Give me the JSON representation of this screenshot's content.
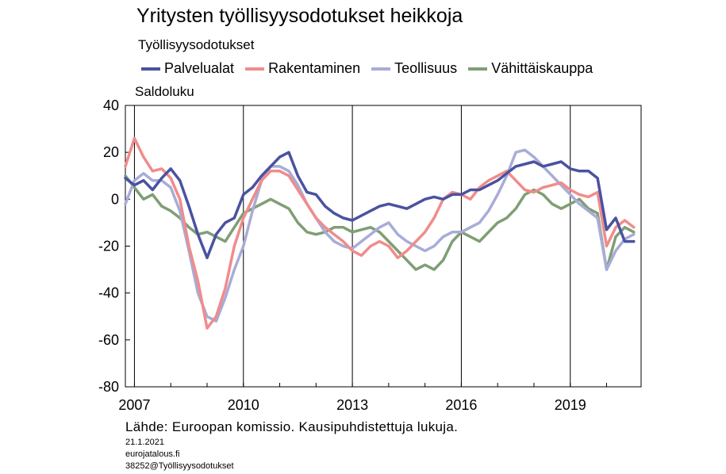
{
  "title": "Yritysten työllisyysodotukset heikkoja",
  "subtitle": "Työllisyysodotukset",
  "source": "Lähde: Euroopan komissio. Kausipuhdistettuja lukuja.",
  "date": "21.1.2021",
  "website": "eurojatalous.fi",
  "code": "38252@Työllisyysodotukset",
  "chart_data": {
    "type": "line",
    "ylabel": "Saldoluku",
    "xlim": [
      2006.75,
      2020.95
    ],
    "ylim": [
      -80,
      40
    ],
    "yticks": [
      -80,
      -60,
      -40,
      -20,
      0,
      20,
      40
    ],
    "ytick_labels": [
      "-80",
      "-60",
      "-40",
      "-20",
      "0",
      "20",
      "40"
    ],
    "xticks": [
      2007,
      2010,
      2013,
      2016,
      2019
    ],
    "xtick_labels": [
      "2007",
      "2010",
      "2013",
      "2016",
      "2019"
    ],
    "grid": "vertical",
    "legend": "top",
    "series": [
      {
        "name": "Palvelualat",
        "color": "#4a52a0",
        "points": [
          [
            2006.75,
            9
          ],
          [
            2007.0,
            6
          ],
          [
            2007.25,
            8
          ],
          [
            2007.5,
            4
          ],
          [
            2007.75,
            9
          ],
          [
            2008.0,
            13
          ],
          [
            2008.25,
            8
          ],
          [
            2008.5,
            -3
          ],
          [
            2008.75,
            -15
          ],
          [
            2009.0,
            -25
          ],
          [
            2009.25,
            -15
          ],
          [
            2009.5,
            -10
          ],
          [
            2009.75,
            -8
          ],
          [
            2010.0,
            2
          ],
          [
            2010.25,
            5
          ],
          [
            2010.5,
            10
          ],
          [
            2010.75,
            14
          ],
          [
            2011.0,
            18
          ],
          [
            2011.25,
            20
          ],
          [
            2011.5,
            10
          ],
          [
            2011.75,
            3
          ],
          [
            2012.0,
            2
          ],
          [
            2012.25,
            -3
          ],
          [
            2012.5,
            -6
          ],
          [
            2012.75,
            -8
          ],
          [
            2013.0,
            -9
          ],
          [
            2013.25,
            -7
          ],
          [
            2013.5,
            -5
          ],
          [
            2013.75,
            -3
          ],
          [
            2014.0,
            -2
          ],
          [
            2014.25,
            -3
          ],
          [
            2014.5,
            -4
          ],
          [
            2014.75,
            -2
          ],
          [
            2015.0,
            0
          ],
          [
            2015.25,
            1
          ],
          [
            2015.5,
            0
          ],
          [
            2015.75,
            2
          ],
          [
            2016.0,
            2
          ],
          [
            2016.25,
            4
          ],
          [
            2016.5,
            4
          ],
          [
            2016.75,
            6
          ],
          [
            2017.0,
            8
          ],
          [
            2017.25,
            11
          ],
          [
            2017.5,
            14
          ],
          [
            2017.75,
            15
          ],
          [
            2018.0,
            16
          ],
          [
            2018.25,
            14
          ],
          [
            2018.5,
            15
          ],
          [
            2018.75,
            16
          ],
          [
            2019.0,
            13
          ],
          [
            2019.25,
            12
          ],
          [
            2019.5,
            12
          ],
          [
            2019.75,
            9
          ],
          [
            2020.0,
            -13
          ],
          [
            2020.25,
            -8
          ],
          [
            2020.5,
            -18
          ],
          [
            2020.75,
            -18
          ]
        ]
      },
      {
        "name": "Rakentaminen",
        "color": "#f08c8c",
        "points": [
          [
            2006.75,
            14
          ],
          [
            2007.0,
            26
          ],
          [
            2007.25,
            18
          ],
          [
            2007.5,
            12
          ],
          [
            2007.75,
            13
          ],
          [
            2008.0,
            9
          ],
          [
            2008.25,
            0
          ],
          [
            2008.5,
            -20
          ],
          [
            2008.75,
            -35
          ],
          [
            2009.0,
            -55
          ],
          [
            2009.25,
            -50
          ],
          [
            2009.5,
            -38
          ],
          [
            2009.75,
            -20
          ],
          [
            2010.0,
            -8
          ],
          [
            2010.25,
            0
          ],
          [
            2010.5,
            8
          ],
          [
            2010.75,
            12
          ],
          [
            2011.0,
            12
          ],
          [
            2011.25,
            10
          ],
          [
            2011.5,
            4
          ],
          [
            2011.75,
            -2
          ],
          [
            2012.0,
            -8
          ],
          [
            2012.25,
            -12
          ],
          [
            2012.5,
            -15
          ],
          [
            2012.75,
            -18
          ],
          [
            2013.0,
            -22
          ],
          [
            2013.25,
            -24
          ],
          [
            2013.5,
            -20
          ],
          [
            2013.75,
            -18
          ],
          [
            2014.0,
            -20
          ],
          [
            2014.25,
            -25
          ],
          [
            2014.5,
            -22
          ],
          [
            2014.75,
            -18
          ],
          [
            2015.0,
            -14
          ],
          [
            2015.25,
            -8
          ],
          [
            2015.5,
            0
          ],
          [
            2015.75,
            3
          ],
          [
            2016.0,
            2
          ],
          [
            2016.25,
            0
          ],
          [
            2016.5,
            5
          ],
          [
            2016.75,
            8
          ],
          [
            2017.0,
            10
          ],
          [
            2017.25,
            12
          ],
          [
            2017.5,
            8
          ],
          [
            2017.75,
            4
          ],
          [
            2018.0,
            3
          ],
          [
            2018.25,
            5
          ],
          [
            2018.5,
            6
          ],
          [
            2018.75,
            7
          ],
          [
            2019.0,
            4
          ],
          [
            2019.25,
            2
          ],
          [
            2019.5,
            1
          ],
          [
            2019.75,
            3
          ],
          [
            2020.0,
            -20
          ],
          [
            2020.25,
            -12
          ],
          [
            2020.5,
            -9
          ],
          [
            2020.75,
            -12
          ]
        ]
      },
      {
        "name": "Teollisuus",
        "color": "#a8acd8",
        "points": [
          [
            2006.75,
            -2
          ],
          [
            2007.0,
            8
          ],
          [
            2007.25,
            11
          ],
          [
            2007.5,
            8
          ],
          [
            2007.75,
            8
          ],
          [
            2008.0,
            5
          ],
          [
            2008.25,
            -5
          ],
          [
            2008.5,
            -22
          ],
          [
            2008.75,
            -40
          ],
          [
            2009.0,
            -50
          ],
          [
            2009.25,
            -52
          ],
          [
            2009.5,
            -42
          ],
          [
            2009.75,
            -30
          ],
          [
            2010.0,
            -20
          ],
          [
            2010.25,
            -5
          ],
          [
            2010.5,
            8
          ],
          [
            2010.75,
            14
          ],
          [
            2011.0,
            14
          ],
          [
            2011.25,
            12
          ],
          [
            2011.5,
            6
          ],
          [
            2011.75,
            -2
          ],
          [
            2012.0,
            -8
          ],
          [
            2012.25,
            -14
          ],
          [
            2012.5,
            -18
          ],
          [
            2012.75,
            -20
          ],
          [
            2013.0,
            -21
          ],
          [
            2013.25,
            -18
          ],
          [
            2013.5,
            -15
          ],
          [
            2013.75,
            -12
          ],
          [
            2014.0,
            -10
          ],
          [
            2014.25,
            -15
          ],
          [
            2014.5,
            -18
          ],
          [
            2014.75,
            -20
          ],
          [
            2015.0,
            -22
          ],
          [
            2015.25,
            -20
          ],
          [
            2015.5,
            -16
          ],
          [
            2015.75,
            -14
          ],
          [
            2016.0,
            -14
          ],
          [
            2016.25,
            -12
          ],
          [
            2016.5,
            -10
          ],
          [
            2016.75,
            -5
          ],
          [
            2017.0,
            2
          ],
          [
            2017.25,
            10
          ],
          [
            2017.5,
            20
          ],
          [
            2017.75,
            21
          ],
          [
            2018.0,
            18
          ],
          [
            2018.25,
            14
          ],
          [
            2018.5,
            10
          ],
          [
            2018.75,
            6
          ],
          [
            2019.0,
            2
          ],
          [
            2019.25,
            -2
          ],
          [
            2019.5,
            -5
          ],
          [
            2019.75,
            -8
          ],
          [
            2020.0,
            -30
          ],
          [
            2020.25,
            -22
          ],
          [
            2020.5,
            -17
          ],
          [
            2020.75,
            -15
          ]
        ]
      },
      {
        "name": "Vähittäiskauppa",
        "color": "#7f9e74",
        "points": [
          [
            2006.75,
            10
          ],
          [
            2007.0,
            5
          ],
          [
            2007.25,
            0
          ],
          [
            2007.5,
            2
          ],
          [
            2007.75,
            -3
          ],
          [
            2008.0,
            -5
          ],
          [
            2008.25,
            -8
          ],
          [
            2008.5,
            -12
          ],
          [
            2008.75,
            -15
          ],
          [
            2009.0,
            -14
          ],
          [
            2009.25,
            -16
          ],
          [
            2009.5,
            -18
          ],
          [
            2009.75,
            -12
          ],
          [
            2010.0,
            -6
          ],
          [
            2010.25,
            -4
          ],
          [
            2010.5,
            -2
          ],
          [
            2010.75,
            0
          ],
          [
            2011.0,
            -2
          ],
          [
            2011.25,
            -4
          ],
          [
            2011.5,
            -10
          ],
          [
            2011.75,
            -14
          ],
          [
            2012.0,
            -15
          ],
          [
            2012.25,
            -14
          ],
          [
            2012.5,
            -12
          ],
          [
            2012.75,
            -12
          ],
          [
            2013.0,
            -14
          ],
          [
            2013.25,
            -13
          ],
          [
            2013.5,
            -12
          ],
          [
            2013.75,
            -14
          ],
          [
            2014.0,
            -18
          ],
          [
            2014.25,
            -22
          ],
          [
            2014.5,
            -26
          ],
          [
            2014.75,
            -30
          ],
          [
            2015.0,
            -28
          ],
          [
            2015.25,
            -30
          ],
          [
            2015.5,
            -26
          ],
          [
            2015.75,
            -18
          ],
          [
            2016.0,
            -14
          ],
          [
            2016.25,
            -16
          ],
          [
            2016.5,
            -18
          ],
          [
            2016.75,
            -14
          ],
          [
            2017.0,
            -10
          ],
          [
            2017.25,
            -8
          ],
          [
            2017.5,
            -4
          ],
          [
            2017.75,
            2
          ],
          [
            2018.0,
            4
          ],
          [
            2018.25,
            2
          ],
          [
            2018.5,
            -2
          ],
          [
            2018.75,
            -4
          ],
          [
            2019.0,
            -2
          ],
          [
            2019.25,
            0
          ],
          [
            2019.5,
            -4
          ],
          [
            2019.75,
            -6
          ],
          [
            2020.0,
            -30
          ],
          [
            2020.25,
            -16
          ],
          [
            2020.5,
            -12
          ],
          [
            2020.75,
            -14
          ]
        ]
      }
    ]
  }
}
